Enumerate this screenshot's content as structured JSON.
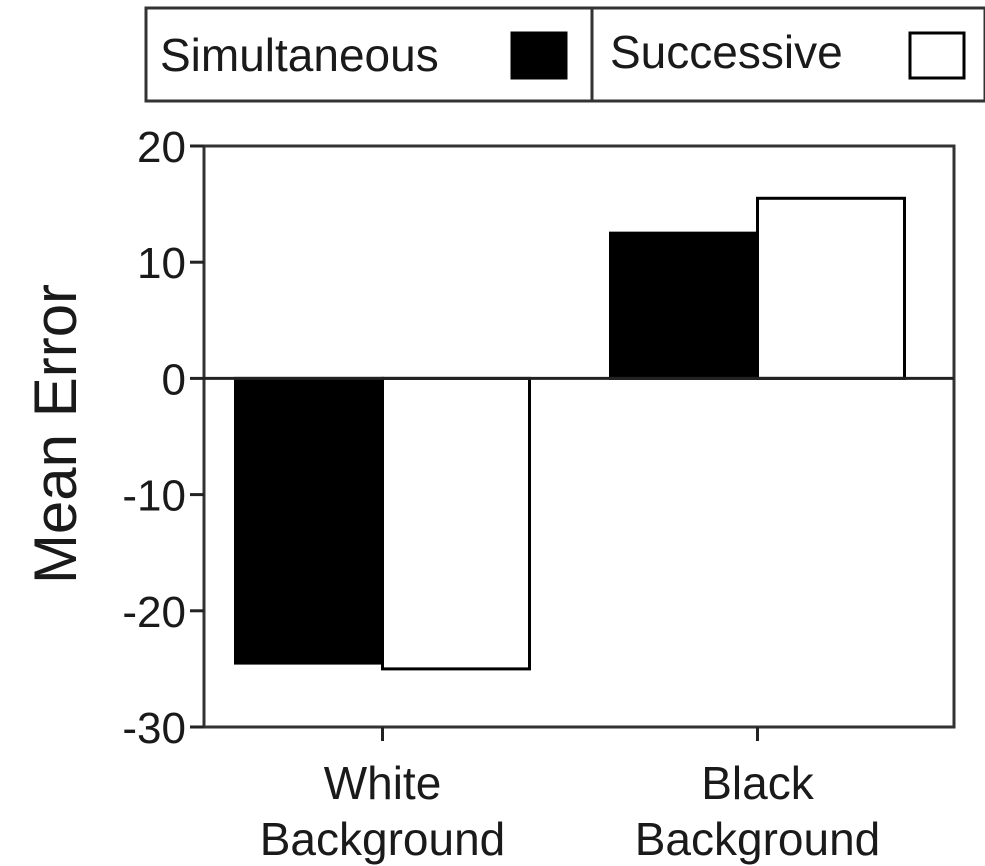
{
  "chart_data": {
    "type": "bar",
    "title": "",
    "xlabel": "",
    "ylabel": "Mean Error",
    "ylim": [
      -30,
      20
    ],
    "yticks": [
      20,
      10,
      0,
      -10,
      -20,
      -30
    ],
    "ytick_labels": [
      "20",
      "10",
      "0",
      "-10",
      "-20",
      "-30"
    ],
    "categories": [
      [
        "White",
        "Background"
      ],
      [
        "Black",
        "Background"
      ]
    ],
    "series": [
      {
        "name": "Simultaneous",
        "color": "#000000",
        "values": [
          -24.5,
          12.5
        ]
      },
      {
        "name": "Successive",
        "color": "#ffffff",
        "values": [
          -25,
          15.5
        ]
      }
    ],
    "legend_position": "top",
    "grid": false
  }
}
